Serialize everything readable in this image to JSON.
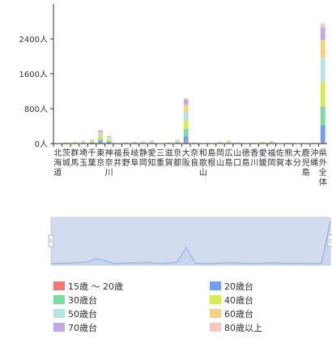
{
  "chart_data": {
    "type": "bar",
    "stacked": true,
    "title": "",
    "xlabel": "",
    "ylabel": "",
    "ylim": [
      0,
      3200
    ],
    "y_ticks": [
      0,
      800,
      1600,
      2400
    ],
    "y_tick_labels": [
      "0人",
      "800人",
      "1600人",
      "2400人"
    ],
    "categories": [
      "北海道",
      "茨城",
      "群馬",
      "埼玉",
      "千葉",
      "東京",
      "神奈川",
      "福井",
      "長野",
      "岐阜",
      "静岡",
      "愛知",
      "三重",
      "滋賀",
      "京都",
      "大阪",
      "奈良",
      "和歌山",
      "島根",
      "岡山",
      "広島",
      "山口",
      "徳島",
      "香川",
      "愛媛",
      "福岡",
      "佐賀",
      "熊本",
      "大分",
      "鹿児島",
      "沖縄",
      "県外全体"
    ],
    "series": [
      {
        "name": "15歳 ～ 20歳",
        "color": "#f2786f",
        "values": [
          0,
          1,
          2,
          3,
          5,
          15,
          10,
          0,
          1,
          3,
          2,
          3,
          0,
          1,
          4,
          25,
          0,
          0,
          0,
          2,
          3,
          1,
          0,
          0,
          2,
          2,
          0,
          0,
          0,
          0,
          1,
          38
        ]
      },
      {
        "name": "20歳台",
        "color": "#6e9ff5",
        "values": [
          0,
          3,
          5,
          8,
          15,
          45,
          25,
          1,
          4,
          6,
          6,
          10,
          1,
          4,
          12,
          140,
          3,
          1,
          1,
          6,
          10,
          3,
          1,
          2,
          5,
          8,
          1,
          2,
          1,
          1,
          3,
          380
        ]
      },
      {
        "name": "30歳台",
        "color": "#7ddaa3",
        "values": [
          0,
          3,
          6,
          9,
          15,
          50,
          28,
          1,
          4,
          6,
          8,
          12,
          2,
          4,
          14,
          170,
          4,
          1,
          1,
          6,
          10,
          4,
          1,
          2,
          6,
          8,
          2,
          2,
          1,
          1,
          3,
          430
        ]
      },
      {
        "name": "40歳台",
        "color": "#d6ec51",
        "values": [
          0,
          4,
          7,
          12,
          18,
          55,
          35,
          2,
          5,
          8,
          10,
          14,
          2,
          5,
          16,
          200,
          5,
          2,
          1,
          8,
          12,
          5,
          2,
          3,
          8,
          10,
          2,
          3,
          1,
          2,
          4,
          560
        ]
      },
      {
        "name": "50歳台",
        "color": "#b6e4e2",
        "values": [
          0,
          4,
          7,
          12,
          18,
          60,
          35,
          2,
          5,
          8,
          10,
          14,
          2,
          5,
          16,
          200,
          5,
          2,
          1,
          8,
          12,
          5,
          2,
          3,
          8,
          10,
          2,
          3,
          1,
          2,
          4,
          560
        ]
      },
      {
        "name": "60歳台",
        "color": "#f9d07b",
        "values": [
          0,
          3,
          5,
          8,
          12,
          45,
          25,
          1,
          4,
          5,
          7,
          10,
          1,
          3,
          12,
          160,
          4,
          1,
          1,
          5,
          8,
          3,
          1,
          2,
          5,
          7,
          1,
          2,
          1,
          1,
          3,
          410
        ]
      },
      {
        "name": "70歳台",
        "color": "#c3a8e6",
        "values": [
          0,
          2,
          3,
          5,
          8,
          30,
          15,
          1,
          2,
          3,
          4,
          6,
          1,
          2,
          8,
          110,
          2,
          1,
          0,
          3,
          5,
          2,
          1,
          1,
          3,
          4,
          1,
          1,
          0,
          1,
          2,
          280
        ]
      },
      {
        "name": "80歳以上",
        "color": "#f8c8c0",
        "values": [
          0,
          1,
          1,
          2,
          3,
          10,
          5,
          0,
          1,
          1,
          2,
          2,
          0,
          1,
          3,
          35,
          1,
          0,
          0,
          1,
          2,
          1,
          0,
          0,
          1,
          2,
          0,
          0,
          0,
          0,
          1,
          95
        ]
      }
    ],
    "legend": {
      "position": "bottom",
      "columns": 2
    },
    "grid": false,
    "dataZoom": {
      "start": 0,
      "end": 1
    }
  },
  "legend_items": [
    {
      "label": "15歳 ～ 20歳",
      "color": "#f2786f"
    },
    {
      "label": "20歳台",
      "color": "#6e9ff5"
    },
    {
      "label": "30歳台",
      "color": "#7ddaa3"
    },
    {
      "label": "40歳台",
      "color": "#d6ec51"
    },
    {
      "label": "50歳台",
      "color": "#b6e4e2"
    },
    {
      "label": "60歳台",
      "color": "#f9d07b"
    },
    {
      "label": "70歳台",
      "color": "#c3a8e6"
    },
    {
      "label": "80歳以上",
      "color": "#f8c8c0"
    }
  ],
  "zoom_colors": {
    "fill": "#d3dcee",
    "line": "#8fb4e3",
    "handle": "#aab4c4"
  }
}
